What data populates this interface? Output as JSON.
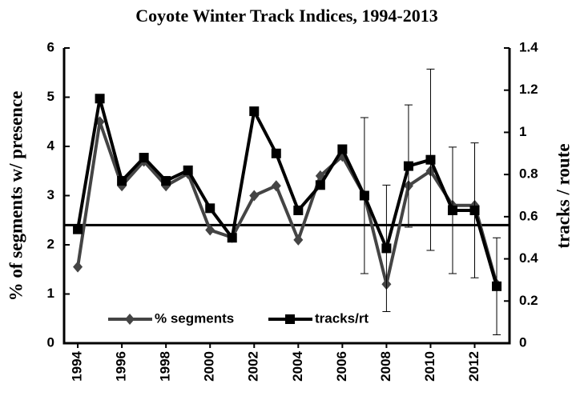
{
  "chart_data": {
    "type": "line",
    "title": "Coyote Winter Track Indices, 1994-2013",
    "y_label": "% of segments w/ presence",
    "y2_label": "tracks / route",
    "x": [
      1994,
      1995,
      1996,
      1997,
      1998,
      1999,
      2000,
      2001,
      2002,
      2003,
      2004,
      2005,
      2006,
      2007,
      2008,
      2009,
      2010,
      2011,
      2012,
      2013
    ],
    "xlim": [
      1993.38,
      2013.58
    ],
    "xticks": [
      1994,
      1996,
      1998,
      2000,
      2002,
      2004,
      2006,
      2008,
      2010,
      2012
    ],
    "ylim": [
      0,
      6
    ],
    "yticks": [
      0,
      1,
      2,
      3,
      4,
      5,
      6
    ],
    "y2lim": [
      0,
      1.4
    ],
    "y2ticks": [
      0,
      0.2,
      0.4,
      0.6,
      0.8,
      1,
      1.2,
      1.4
    ],
    "series": [
      {
        "name": "% segments",
        "color": "#444444",
        "marker": "diamond",
        "values": [
          1.55,
          4.5,
          3.2,
          3.7,
          3.2,
          3.45,
          2.3,
          2.15,
          3.0,
          3.2,
          2.1,
          3.4,
          3.8,
          3.0,
          1.2,
          3.2,
          3.5,
          2.8,
          2.8,
          1.2
        ]
      },
      {
        "name": "tracks/rt",
        "color": "#000000",
        "marker": "square",
        "axis": "y2",
        "values": [
          0.54,
          1.16,
          0.77,
          0.88,
          0.77,
          0.82,
          0.64,
          0.5,
          1.1,
          0.9,
          0.63,
          0.75,
          0.92,
          0.7,
          0.45,
          0.84,
          0.87,
          0.63,
          0.63,
          0.27
        ],
        "errors": [
          null,
          null,
          null,
          null,
          null,
          null,
          null,
          null,
          null,
          null,
          null,
          null,
          null,
          0.37,
          0.3,
          0.29,
          0.43,
          0.3,
          0.32,
          0.23
        ]
      }
    ],
    "reference_line": {
      "value": 0.56,
      "axis": "y2",
      "color": "#000000"
    },
    "legend": "bottom"
  }
}
